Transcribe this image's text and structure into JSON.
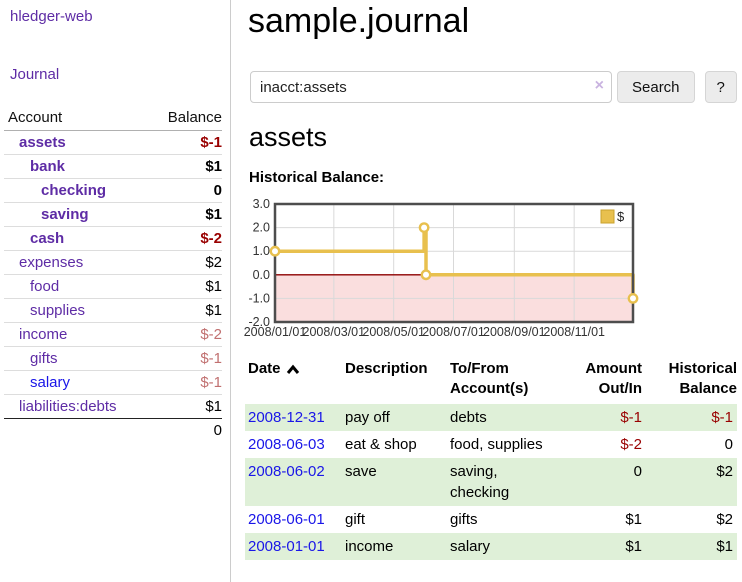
{
  "colors": {
    "link-purple": "#5e2ca5",
    "link-blue": "#1a16e8",
    "neg-red": "#990000",
    "neg-rose": "#c17070",
    "row-green": "#dff0d8",
    "chart-gold": "#e8c04e",
    "chart-gold-dark": "#c9a22e",
    "chart-pink": "#fadede",
    "chart-zero": "#8f0000",
    "chart-border": "#4d4d4d",
    "chart-grid": "#d9d9d9"
  },
  "sidebar": {
    "brand": "hledger-web",
    "nav": [
      {
        "label": "Journal"
      }
    ],
    "headers": {
      "account": "Account",
      "balance": "Balance"
    },
    "accounts": [
      {
        "name": "assets",
        "balance": "$-1",
        "indent": 1,
        "bold": true,
        "name_color": "purple",
        "balance_color": "red"
      },
      {
        "name": "bank",
        "balance": "$1",
        "indent": 2,
        "bold": true,
        "name_color": "purple",
        "balance_color": "black"
      },
      {
        "name": "checking",
        "balance": "0",
        "indent": 3,
        "bold": true,
        "name_color": "purple",
        "balance_color": "black"
      },
      {
        "name": "saving",
        "balance": "$1",
        "indent": 3,
        "bold": true,
        "name_color": "purple",
        "balance_color": "black"
      },
      {
        "name": "cash",
        "balance": "$-2",
        "indent": 2,
        "bold": true,
        "name_color": "purple",
        "balance_color": "red"
      },
      {
        "name": "expenses",
        "balance": "$2",
        "indent": 1,
        "bold": false,
        "name_color": "purple",
        "balance_color": "black"
      },
      {
        "name": "food",
        "balance": "$1",
        "indent": 2,
        "bold": false,
        "name_color": "purple",
        "balance_color": "black"
      },
      {
        "name": "supplies",
        "balance": "$1",
        "indent": 2,
        "bold": false,
        "name_color": "purple",
        "balance_color": "black"
      },
      {
        "name": "income",
        "balance": "$-2",
        "indent": 1,
        "bold": false,
        "name_color": "purple",
        "balance_color": "rose"
      },
      {
        "name": "gifts",
        "balance": "$-1",
        "indent": 2,
        "bold": false,
        "name_color": "purple",
        "balance_color": "rose"
      },
      {
        "name": "salary",
        "balance": "$-1",
        "indent": 2,
        "bold": false,
        "name_color": "blue",
        "balance_color": "rose"
      },
      {
        "name": "liabilities:debts",
        "balance": "$1",
        "indent": 1,
        "bold": false,
        "name_color": "purple",
        "balance_color": "black"
      }
    ],
    "total": "0"
  },
  "main": {
    "title": "sample.journal",
    "search": {
      "value": "inacct:assets",
      "clear_icon": "×",
      "search_button": "Search",
      "help_button": "?"
    },
    "account_heading": "assets",
    "section_label": "Historical Balance:"
  },
  "chart_data": {
    "type": "line",
    "step": true,
    "title": "Historical Balance",
    "series": [
      {
        "name": "$",
        "points": [
          [
            "2008-01-01",
            1
          ],
          [
            "2008-06-01",
            2
          ],
          [
            "2008-06-03",
            0
          ],
          [
            "2008-12-31",
            -1
          ]
        ]
      }
    ],
    "x_start": "2008-01-01",
    "x_end": "2008-12-31",
    "xticks": [
      "2008/01/01",
      "2008/03/01",
      "2008/05/01",
      "2008/07/01",
      "2008/09/01",
      "2008/11/01"
    ],
    "yticks": [
      3.0,
      2.0,
      1.0,
      0.0,
      -1.0,
      -2.0
    ],
    "ylim": [
      -2,
      3
    ],
    "legend": {
      "label": "$",
      "position": "top-right"
    },
    "grid": true,
    "negative_region_shaded": true
  },
  "register": {
    "headers": [
      {
        "line1": "Date",
        "line2": "",
        "sortable": true
      },
      {
        "line1": "Description",
        "line2": ""
      },
      {
        "line1": "To/From",
        "line2": "Account(s)"
      },
      {
        "line1": "Amount",
        "line2": "Out/In"
      },
      {
        "line1": "Historical",
        "line2": "Balance"
      }
    ],
    "rows": [
      {
        "date": "2008-12-31",
        "description": "pay off",
        "accounts": [
          "debts"
        ],
        "amount": "$-1",
        "amount_negative": true,
        "balance": "$-1",
        "balance_negative": true,
        "shaded": true
      },
      {
        "date": "2008-06-03",
        "description": "eat & shop",
        "accounts": [
          "food, supplies"
        ],
        "amount": "$-2",
        "amount_negative": true,
        "balance": "0",
        "balance_negative": false,
        "shaded": false
      },
      {
        "date": "2008-06-02",
        "description": "save",
        "accounts": [
          "saving,",
          "checking"
        ],
        "amount": "0",
        "amount_negative": false,
        "balance": "$2",
        "balance_negative": false,
        "shaded": true
      },
      {
        "date": "2008-06-01",
        "description": "gift",
        "accounts": [
          "gifts"
        ],
        "amount": "$1",
        "amount_negative": false,
        "balance": "$2",
        "balance_negative": false,
        "shaded": false
      },
      {
        "date": "2008-01-01",
        "description": "income",
        "accounts": [
          "salary"
        ],
        "amount": "$1",
        "amount_negative": false,
        "balance": "$1",
        "balance_negative": false,
        "shaded": true
      }
    ]
  }
}
